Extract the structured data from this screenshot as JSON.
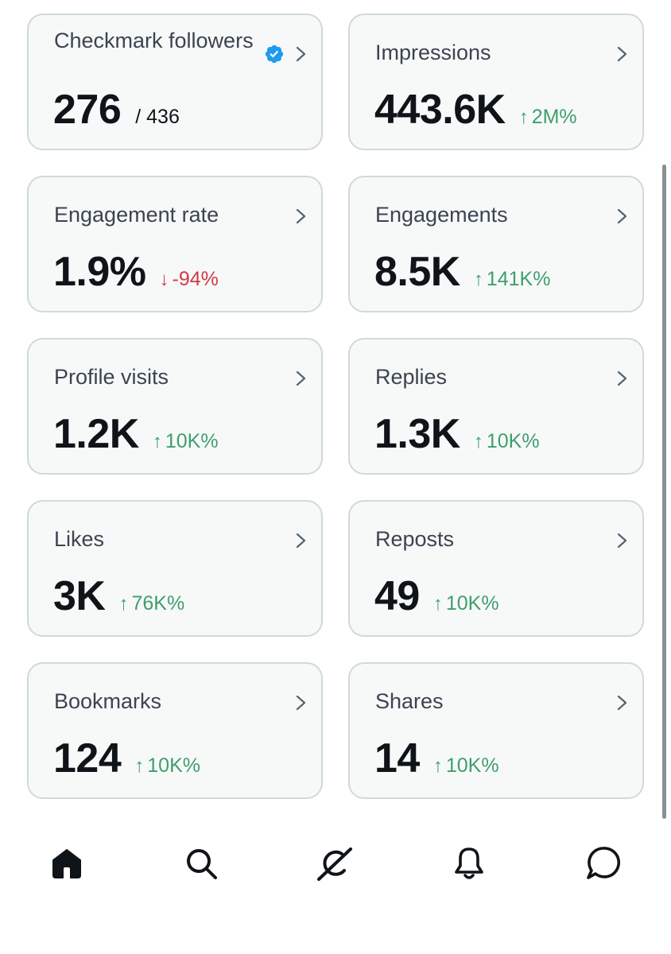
{
  "cards": [
    {
      "title": "Checkmark followers",
      "value": "276",
      "total": "/ 436",
      "verified_icon": "verified-badge-icon",
      "chevron_icon": "chevron-right-icon"
    },
    {
      "title": "Impressions",
      "value": "443.6K",
      "change": "2M%",
      "direction": "up",
      "chevron_icon": "chevron-right-icon"
    },
    {
      "title": "Engagement rate",
      "value": "1.9%",
      "change": "-94%",
      "direction": "down",
      "chevron_icon": "chevron-right-icon"
    },
    {
      "title": "Engagements",
      "value": "8.5K",
      "change": "141K%",
      "direction": "up",
      "chevron_icon": "chevron-right-icon"
    },
    {
      "title": "Profile visits",
      "value": "1.2K",
      "change": "10K%",
      "direction": "up",
      "chevron_icon": "chevron-right-icon"
    },
    {
      "title": "Replies",
      "value": "1.3K",
      "change": "10K%",
      "direction": "up",
      "chevron_icon": "chevron-right-icon"
    },
    {
      "title": "Likes",
      "value": "3K",
      "change": "76K%",
      "direction": "up",
      "chevron_icon": "chevron-right-icon"
    },
    {
      "title": "Reposts",
      "value": "49",
      "change": "10K%",
      "direction": "up",
      "chevron_icon": "chevron-right-icon"
    },
    {
      "title": "Bookmarks",
      "value": "124",
      "change": "10K%",
      "direction": "up",
      "chevron_icon": "chevron-right-icon"
    },
    {
      "title": "Shares",
      "value": "14",
      "change": "10K%",
      "direction": "up",
      "chevron_icon": "chevron-right-icon"
    }
  ],
  "arrows": {
    "up": "↑",
    "down": "↓"
  },
  "tabbar": {
    "items": [
      {
        "icon": "home-icon",
        "active": true
      },
      {
        "icon": "search-icon",
        "active": false
      },
      {
        "icon": "grok-icon",
        "active": false
      },
      {
        "icon": "bell-icon",
        "active": false
      },
      {
        "icon": "messages-icon",
        "active": false
      }
    ]
  },
  "colors": {
    "card_background": "#f7f9f9",
    "card_border": "#cfd9de",
    "text_primary": "#0f1419",
    "text_secondary": "#3b4450",
    "positive": "#3f9e6c",
    "negative": "#d23a45",
    "verified": "#1d9bf0"
  }
}
